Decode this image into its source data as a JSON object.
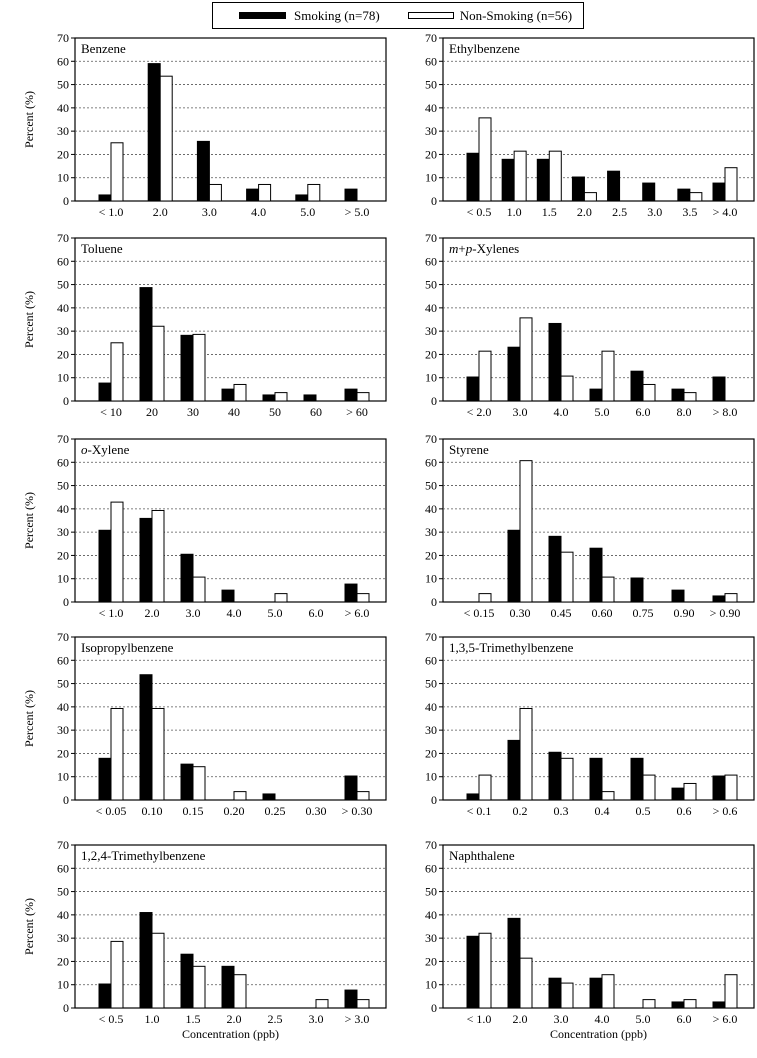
{
  "legend": {
    "smoking_label": "Smoking (n=78)",
    "nonsmoking_label": "Non-Smoking (n=56)"
  },
  "colors": {
    "smoking": "#000000",
    "nonsmoking": "#ffffff"
  },
  "ylabel": "Percent (%)",
  "xlabel": "Concentration (ppb)",
  "chart_data": [
    {
      "type": "bar",
      "title": "Benzene",
      "categories": [
        "< 1.0",
        "2.0",
        "3.0",
        "4.0",
        "5.0",
        "> 5.0"
      ],
      "series": [
        {
          "name": "Smoking (n=78)",
          "values": [
            2.6,
            59,
            25.6,
            5.1,
            2.6,
            5.1
          ]
        },
        {
          "name": "Non-Smoking (n=56)",
          "values": [
            25,
            53.6,
            7.1,
            7.1,
            7.1,
            0
          ]
        }
      ],
      "ylim": [
        0,
        70
      ],
      "yticks": [
        0,
        10,
        20,
        30,
        40,
        50,
        60,
        70
      ],
      "grid": true
    },
    {
      "type": "bar",
      "title": "Ethylbenzene",
      "categories": [
        "< 0.5",
        "1.0",
        "1.5",
        "2.0",
        "2.5",
        "3.0",
        "3.5",
        "> 4.0"
      ],
      "series": [
        {
          "name": "Smoking (n=78)",
          "values": [
            20.5,
            17.9,
            17.9,
            10.3,
            12.8,
            7.7,
            5.1,
            7.7
          ]
        },
        {
          "name": "Non-Smoking (n=56)",
          "values": [
            35.7,
            21.4,
            21.4,
            3.6,
            0,
            0,
            3.6,
            14.3
          ]
        }
      ],
      "ylim": [
        0,
        70
      ],
      "yticks": [
        0,
        10,
        20,
        30,
        40,
        50,
        60,
        70
      ],
      "grid": true
    },
    {
      "type": "bar",
      "title": "Toluene",
      "categories": [
        "< 10",
        "20",
        "30",
        "40",
        "50",
        "60",
        "> 60"
      ],
      "series": [
        {
          "name": "Smoking (n=78)",
          "values": [
            7.7,
            48.7,
            28.2,
            5.1,
            2.6,
            2.6,
            5.1
          ]
        },
        {
          "name": "Non-Smoking (n=56)",
          "values": [
            25,
            32.1,
            28.6,
            7.1,
            3.6,
            0,
            3.6
          ]
        }
      ],
      "ylim": [
        0,
        70
      ],
      "yticks": [
        0,
        10,
        20,
        30,
        40,
        50,
        60,
        70
      ],
      "grid": true
    },
    {
      "type": "bar",
      "title": "m+p-Xylenes",
      "categories": [
        "< 2.0",
        "3.0",
        "4.0",
        "5.0",
        "6.0",
        "8.0",
        "> 8.0"
      ],
      "series": [
        {
          "name": "Smoking (n=78)",
          "values": [
            10.3,
            23.1,
            33.3,
            5.1,
            12.8,
            5.1,
            10.3
          ]
        },
        {
          "name": "Non-Smoking (n=56)",
          "values": [
            21.4,
            35.7,
            10.7,
            21.4,
            7.1,
            3.6,
            0
          ]
        }
      ],
      "ylim": [
        0,
        70
      ],
      "yticks": [
        0,
        10,
        20,
        30,
        40,
        50,
        60,
        70
      ],
      "grid": true
    },
    {
      "type": "bar",
      "title": "o-Xylene",
      "categories": [
        "< 1.0",
        "2.0",
        "3.0",
        "4.0",
        "5.0",
        "6.0",
        "> 6.0"
      ],
      "series": [
        {
          "name": "Smoking (n=78)",
          "values": [
            30.8,
            35.9,
            20.5,
            5.1,
            0,
            0,
            7.7
          ]
        },
        {
          "name": "Non-Smoking (n=56)",
          "values": [
            42.9,
            39.3,
            10.7,
            0,
            3.6,
            0,
            3.6
          ]
        }
      ],
      "ylim": [
        0,
        70
      ],
      "yticks": [
        0,
        10,
        20,
        30,
        40,
        50,
        60,
        70
      ],
      "grid": true
    },
    {
      "type": "bar",
      "title": "Styrene",
      "categories": [
        "< 0.15",
        "0.30",
        "0.45",
        "0.60",
        "0.75",
        "0.90",
        "> 0.90"
      ],
      "series": [
        {
          "name": "Smoking (n=78)",
          "values": [
            0,
            30.8,
            28.2,
            23.1,
            10.3,
            5.1,
            2.6
          ]
        },
        {
          "name": "Non-Smoking (n=56)",
          "values": [
            3.6,
            60.7,
            21.4,
            10.7,
            0,
            0,
            3.6
          ]
        }
      ],
      "ylim": [
        0,
        70
      ],
      "yticks": [
        0,
        10,
        20,
        30,
        40,
        50,
        60,
        70
      ],
      "grid": true
    },
    {
      "type": "bar",
      "title": "Isopropylbenzene",
      "categories": [
        "< 0.05",
        "0.10",
        "0.15",
        "0.20",
        "0.25",
        "0.30",
        "> 0.30"
      ],
      "series": [
        {
          "name": "Smoking (n=78)",
          "values": [
            17.9,
            53.8,
            15.4,
            0,
            2.6,
            0,
            10.3
          ]
        },
        {
          "name": "Non-Smoking (n=56)",
          "values": [
            39.3,
            39.3,
            14.3,
            3.6,
            0,
            0,
            3.6
          ]
        }
      ],
      "ylim": [
        0,
        70
      ],
      "yticks": [
        0,
        10,
        20,
        30,
        40,
        50,
        60,
        70
      ],
      "grid": true
    },
    {
      "type": "bar",
      "title": "1,3,5-Trimethylbenzene",
      "categories": [
        "< 0.1",
        "0.2",
        "0.3",
        "0.4",
        "0.5",
        "0.6",
        "> 0.6"
      ],
      "series": [
        {
          "name": "Smoking (n=78)",
          "values": [
            2.6,
            25.6,
            20.5,
            17.9,
            17.9,
            5.1,
            10.3
          ]
        },
        {
          "name": "Non-Smoking (n=56)",
          "values": [
            10.7,
            39.3,
            17.9,
            3.6,
            10.7,
            7.1,
            10.7
          ]
        }
      ],
      "ylim": [
        0,
        70
      ],
      "yticks": [
        0,
        10,
        20,
        30,
        40,
        50,
        60,
        70
      ],
      "grid": true
    },
    {
      "type": "bar",
      "title": "1,2,4-Trimethylbenzene",
      "categories": [
        "< 0.5",
        "1.0",
        "1.5",
        "2.0",
        "2.5",
        "3.0",
        "> 3.0"
      ],
      "series": [
        {
          "name": "Smoking (n=78)",
          "values": [
            10.3,
            41,
            23.1,
            17.9,
            0,
            0,
            7.7
          ]
        },
        {
          "name": "Non-Smoking (n=56)",
          "values": [
            28.6,
            32.1,
            17.9,
            14.3,
            0,
            3.6,
            3.6
          ]
        }
      ],
      "ylim": [
        0,
        70
      ],
      "yticks": [
        0,
        10,
        20,
        30,
        40,
        50,
        60,
        70
      ],
      "grid": true
    },
    {
      "type": "bar",
      "title": "Naphthalene",
      "categories": [
        "< 1.0",
        "2.0",
        "3.0",
        "4.0",
        "5.0",
        "6.0",
        "> 6.0"
      ],
      "series": [
        {
          "name": "Smoking (n=78)",
          "values": [
            30.8,
            38.5,
            12.8,
            12.8,
            0,
            2.6,
            2.6
          ]
        },
        {
          "name": "Non-Smoking (n=56)",
          "values": [
            32.1,
            21.4,
            10.7,
            14.3,
            3.6,
            3.6,
            14.3
          ]
        }
      ],
      "ylim": [
        0,
        70
      ],
      "yticks": [
        0,
        10,
        20,
        30,
        40,
        50,
        60,
        70
      ],
      "grid": true
    }
  ]
}
